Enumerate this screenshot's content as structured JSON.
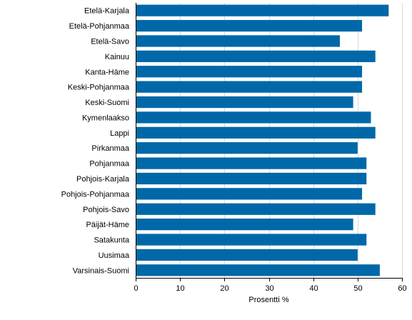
{
  "chart_data": {
    "type": "bar",
    "orientation": "horizontal",
    "categories": [
      "Etelä-Karjala",
      "Etelä-Pohjanmaa",
      "Etelä-Savo",
      "Kainuu",
      "Kanta-Häme",
      "Keski-Pohjanmaa",
      "Keski-Suomi",
      "Kymenlaakso",
      "Lappi",
      "Pirkanmaa",
      "Pohjanmaa",
      "Pohjois-Karjala",
      "Pohjois-Pohjanmaa",
      "Pohjois-Savo",
      "Päijät-Häme",
      "Satakunta",
      "Uusimaa",
      "Varsinais-Suomi"
    ],
    "values": [
      57,
      51,
      46,
      54,
      51,
      51,
      49,
      53,
      54,
      50,
      52,
      52,
      51,
      54,
      49,
      52,
      50,
      55
    ],
    "title": "",
    "xlabel": "Prosentti %",
    "ylabel": "",
    "xlim": [
      0,
      60
    ],
    "xticks": [
      0,
      10,
      20,
      30,
      40,
      50,
      60
    ],
    "grid": true,
    "legend": "none",
    "colors": {
      "bar": "#0068a8",
      "grid": "#d9d9d9",
      "axis": "#000000"
    }
  }
}
